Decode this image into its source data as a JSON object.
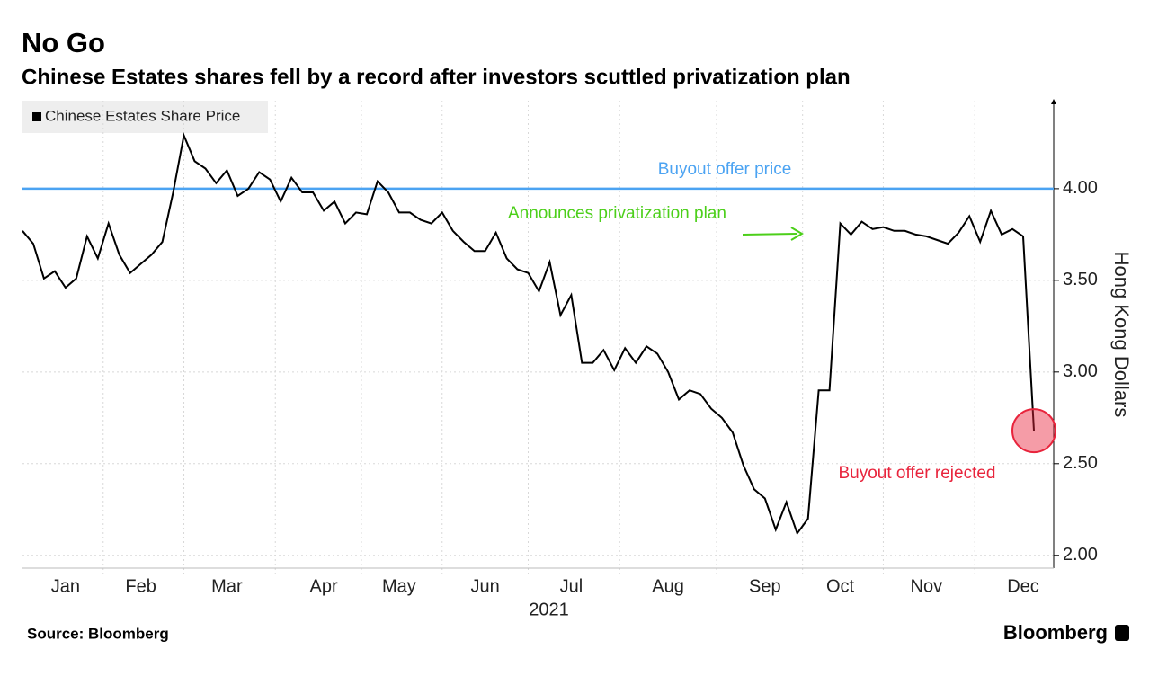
{
  "chart_data": {
    "type": "line",
    "title": "No Go",
    "subtitle": "Chinese Estates shares fell by a record after investors scuttled privatization plan",
    "categories": [
      null,
      null,
      null,
      null,
      "Jan",
      null,
      null,
      null,
      null,
      null,
      null,
      "Feb",
      null,
      null,
      null,
      null,
      null,
      null,
      null,
      "Mar",
      null,
      null,
      null,
      null,
      null,
      null,
      null,
      null,
      "Apr",
      null,
      null,
      null,
      null,
      null,
      null,
      "May",
      null,
      null,
      null,
      null,
      null,
      null,
      null,
      "Jun",
      null,
      null,
      null,
      null,
      null,
      null,
      null,
      "Jul",
      null,
      null,
      null,
      null,
      null,
      null,
      null,
      null,
      "Aug",
      null,
      null,
      null,
      null,
      null,
      null,
      null,
      null,
      "Sep",
      null,
      null,
      null,
      null,
      null,
      null,
      "Oct",
      null,
      null,
      null,
      null,
      null,
      null,
      null,
      "Nov",
      null,
      null,
      null,
      null,
      null,
      null,
      null,
      null,
      "Dec",
      null
    ],
    "x_group_label": "2021",
    "series": [
      {
        "name": "Chinese Estates Share Price",
        "color": "#000000",
        "values": [
          3.77,
          3.7,
          3.51,
          3.55,
          3.46,
          3.51,
          3.74,
          3.62,
          3.81,
          3.64,
          3.54,
          3.59,
          3.64,
          3.71,
          3.98,
          4.29,
          4.15,
          4.11,
          4.03,
          4.1,
          3.96,
          4.0,
          4.09,
          4.05,
          3.93,
          4.06,
          3.98,
          3.98,
          3.88,
          3.93,
          3.81,
          3.87,
          3.86,
          4.04,
          3.98,
          3.87,
          3.87,
          3.83,
          3.81,
          3.87,
          3.77,
          3.71,
          3.66,
          3.66,
          3.76,
          3.62,
          3.56,
          3.54,
          3.44,
          3.6,
          3.31,
          3.42,
          3.05,
          3.05,
          3.12,
          3.01,
          3.13,
          3.05,
          3.14,
          3.1,
          3.0,
          2.85,
          2.9,
          2.88,
          2.8,
          2.75,
          2.67,
          2.49,
          2.36,
          2.31,
          2.14,
          2.29,
          2.12,
          2.2,
          2.9,
          2.9,
          3.81,
          3.75,
          3.82,
          3.78,
          3.79,
          3.77,
          3.77,
          3.75,
          3.74,
          3.72,
          3.7,
          3.76,
          3.85,
          3.71,
          3.88,
          3.75,
          3.78,
          3.74,
          2.68
        ]
      }
    ],
    "ylim": [
      1.94,
      4.48
    ],
    "yticks": [
      {
        "value": 2,
        "label": "2.00"
      },
      {
        "value": 2.5,
        "label": "2.50"
      },
      {
        "value": 3,
        "label": "3.00"
      },
      {
        "value": 3.5,
        "label": "3.50"
      },
      {
        "value": 4,
        "label": "4.00"
      }
    ],
    "y_axis_side": "right",
    "ylabel": "Hong Kong Dollars",
    "grid": true,
    "legend": "top-left",
    "reference_line": {
      "value": 4,
      "label": "Buyout offer price",
      "color": "#4ba3f2"
    },
    "annotations": [
      {
        "text": "Announces privatization plan",
        "color": "#4ccf1a"
      },
      {
        "text": "Buyout offer rejected",
        "color": "#e8243c"
      }
    ],
    "source": "Source: Bloomberg",
    "brand": "Bloomberg"
  }
}
